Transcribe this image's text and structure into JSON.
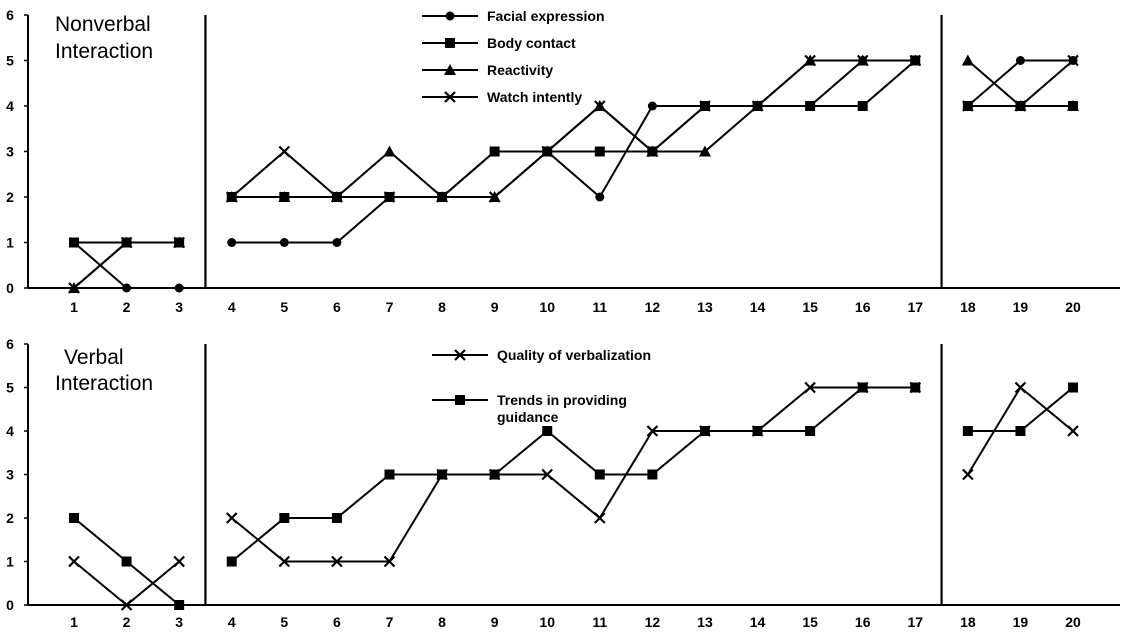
{
  "chart_data": [
    {
      "type": "line",
      "title_lines": [
        "Nonverbal",
        "Interaction"
      ],
      "xlabel": "",
      "ylabel": "",
      "ylim": [
        0,
        6
      ],
      "yticks": [
        "0",
        "1",
        "2",
        "3",
        "4",
        "5",
        "6"
      ],
      "x": [
        1,
        2,
        3,
        4,
        5,
        6,
        7,
        8,
        9,
        10,
        11,
        12,
        13,
        14,
        15,
        16,
        17,
        18,
        19,
        20
      ],
      "x_labels": [
        "1",
        "2",
        "3",
        "4",
        "5",
        "6",
        "7",
        "8",
        "9",
        "10",
        "11",
        "12",
        "13",
        "14",
        "15",
        "16",
        "17",
        "18",
        "19",
        "20"
      ],
      "phase_breaks_after": [
        3,
        17
      ],
      "legend_position": "top-center",
      "series": [
        {
          "name": "Facial expression",
          "marker": "circle",
          "values": [
            1,
            0,
            0,
            1,
            1,
            1,
            2,
            2,
            3,
            3,
            2,
            4,
            4,
            4,
            4,
            5,
            5,
            4,
            5,
            5
          ]
        },
        {
          "name": "Body contact",
          "marker": "square",
          "values": [
            1,
            1,
            1,
            2,
            2,
            2,
            2,
            2,
            3,
            3,
            3,
            3,
            4,
            4,
            4,
            4,
            5,
            4,
            4,
            4
          ]
        },
        {
          "name": "Reactivity",
          "marker": "triangle",
          "values": [
            0,
            1,
            1,
            2,
            2,
            2,
            3,
            2,
            2,
            3,
            4,
            3,
            3,
            4,
            5,
            5,
            5,
            5,
            4,
            4
          ]
        },
        {
          "name": "Watch intently",
          "marker": "x",
          "values": [
            0,
            1,
            1,
            2,
            3,
            2,
            2,
            2,
            2,
            3,
            4,
            3,
            4,
            4,
            5,
            5,
            5,
            4,
            4,
            5
          ]
        }
      ]
    },
    {
      "type": "line",
      "title_lines": [
        "Verbal",
        "Interaction"
      ],
      "xlabel": "",
      "ylabel": "",
      "ylim": [
        0,
        6
      ],
      "yticks": [
        "0",
        "1",
        "2",
        "3",
        "4",
        "5",
        "6"
      ],
      "x": [
        1,
        2,
        3,
        4,
        5,
        6,
        7,
        8,
        9,
        10,
        11,
        12,
        13,
        14,
        15,
        16,
        17,
        18,
        19,
        20
      ],
      "x_labels": [
        "1",
        "2",
        "3",
        "4",
        "5",
        "6",
        "7",
        "8",
        "9",
        "10",
        "11",
        "12",
        "13",
        "14",
        "15",
        "16",
        "17",
        "18",
        "19",
        "20"
      ],
      "phase_breaks_after": [
        3,
        17
      ],
      "legend_position": "top-center",
      "series": [
        {
          "name_lines": [
            "Quality of verbalization"
          ],
          "marker": "x",
          "values": [
            1,
            0,
            1,
            2,
            1,
            1,
            1,
            3,
            3,
            3,
            2,
            4,
            4,
            4,
            5,
            5,
            5,
            3,
            5,
            4
          ]
        },
        {
          "name_lines": [
            "Trends in providing",
            "guidance"
          ],
          "marker": "square",
          "values": [
            2,
            1,
            0,
            1,
            2,
            2,
            3,
            3,
            3,
            4,
            3,
            3,
            4,
            4,
            4,
            5,
            5,
            4,
            4,
            5
          ]
        }
      ]
    }
  ]
}
